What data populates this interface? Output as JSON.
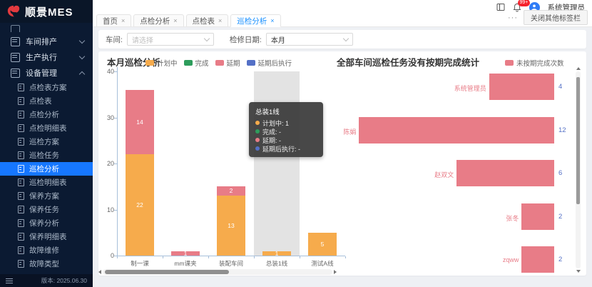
{
  "app": {
    "title": "顺景MES",
    "version": "版本: 2025.06.30"
  },
  "header": {
    "user_name": "系统管理员",
    "notification_badge": "99+"
  },
  "tabbar": {
    "tabs": [
      {
        "label": "首页"
      },
      {
        "label": "点检分析"
      },
      {
        "label": "点检表"
      },
      {
        "label": "巡检分析",
        "active": true
      }
    ],
    "close_glyph": "×",
    "more_label": "···",
    "close_others_label": "关闭其他标签栏"
  },
  "filters": {
    "workshop_label": "车间:",
    "workshop_placeholder": "请选择",
    "date_label": "检修日期:",
    "date_value": "本月"
  },
  "sidebar": {
    "items": [
      {
        "type": "group",
        "icon": "workshop-schedule",
        "label": "车间排产",
        "chevron": "down"
      },
      {
        "type": "group",
        "icon": "production-exec",
        "label": "生产执行",
        "chevron": "down"
      },
      {
        "type": "group",
        "icon": "device-manage",
        "label": "设备管理",
        "chevron": "up",
        "expanded": true
      },
      {
        "type": "child",
        "label": "点检表方案"
      },
      {
        "type": "child",
        "label": "点检表"
      },
      {
        "type": "child",
        "label": "点检分析"
      },
      {
        "type": "child",
        "label": "点检明细表"
      },
      {
        "type": "child",
        "label": "巡检方案"
      },
      {
        "type": "child",
        "label": "巡检任务"
      },
      {
        "type": "child",
        "label": "巡检分析",
        "active": true
      },
      {
        "type": "child",
        "label": "巡检明细表"
      },
      {
        "type": "child",
        "label": "保养方案"
      },
      {
        "type": "child",
        "label": "保养任务"
      },
      {
        "type": "child",
        "label": "保养分析"
      },
      {
        "type": "child",
        "label": "保养明细表"
      },
      {
        "type": "child",
        "label": "故障维修"
      },
      {
        "type": "child",
        "label": "故障类型"
      }
    ]
  },
  "chart_data": [
    {
      "type": "bar",
      "stacked": true,
      "title": "本月巡检分析",
      "categories": [
        "制一课",
        "mm课夹",
        "装配车间",
        "总装1线",
        "测试A线"
      ],
      "series": [
        {
          "name": "计划中",
          "color": "#f6ab4c",
          "values": [
            22,
            0,
            13,
            1,
            5
          ]
        },
        {
          "name": "完成",
          "color": "#2e9d5c",
          "values": [
            0,
            0,
            0,
            0,
            0
          ]
        },
        {
          "name": "延期",
          "color": "#e87c87",
          "values": [
            14,
            1,
            2,
            0,
            0
          ]
        },
        {
          "name": "延期后执行",
          "color": "#5470c6",
          "values": [
            0,
            0,
            0,
            0,
            0
          ]
        }
      ],
      "ylim": [
        0,
        40
      ],
      "yticks": [
        0,
        10,
        20,
        30,
        40
      ],
      "grid": false,
      "legend_position": "top",
      "hover_category_index": 3,
      "tooltip": {
        "title": "总装1线",
        "rows": [
          {
            "name": "计划中",
            "value": "1"
          },
          {
            "name": "完成",
            "value": "-"
          },
          {
            "name": "延期",
            "value": "-"
          },
          {
            "name": "延期后执行",
            "value": "-"
          }
        ]
      }
    },
    {
      "type": "bar",
      "orientation": "horizontal-right-anchored",
      "title": "全部车间巡检任务没有按期完成统计",
      "legend": [
        {
          "name": "未按期完成次数",
          "color": "#e87c87"
        }
      ],
      "categories": [
        "系统管理员",
        "陈娟",
        "赵双文",
        "张冬",
        "zqww"
      ],
      "values": [
        4,
        12,
        6,
        2,
        2
      ],
      "bar_color": "#e87c87",
      "label_color": "#e87c87",
      "value_color": "#5470c6"
    }
  ],
  "colors": {
    "accent": "#1890ff",
    "sidebar_active": "#1677ff"
  }
}
